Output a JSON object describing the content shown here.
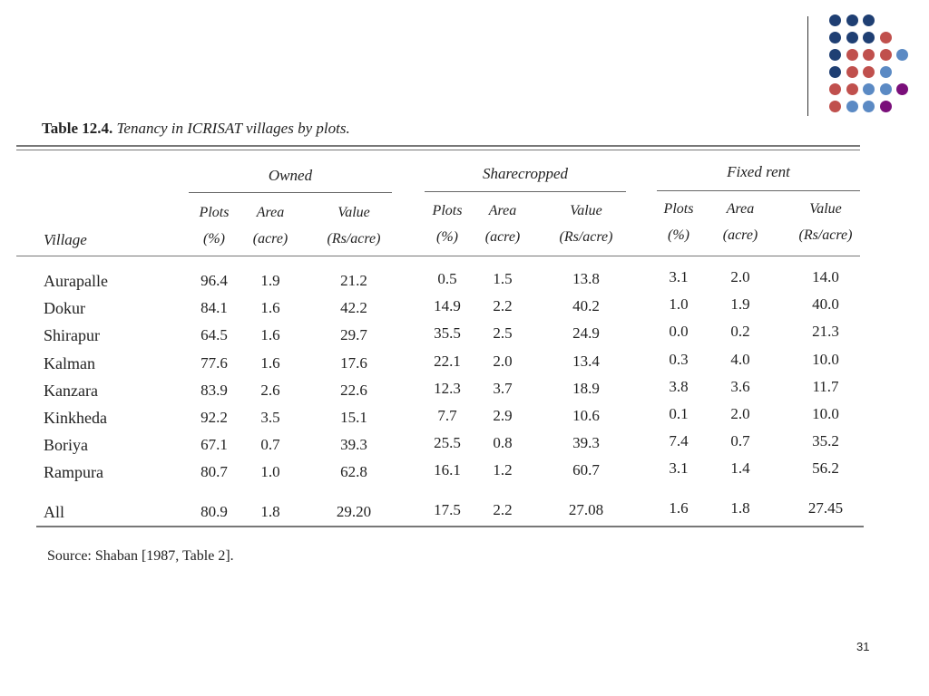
{
  "table": {
    "title_label": "Table 12.4.",
    "title_text": "Tenancy in ICRISAT villages by plots.",
    "groups": [
      "Owned",
      "Sharecropped",
      "Fixed rent"
    ],
    "col_header_village": "Village",
    "sub_headers": [
      {
        "line1": "Plots",
        "line2": "(%)"
      },
      {
        "line1": "Area",
        "line2": "(acre)"
      },
      {
        "line1": "Value",
        "line2": "(Rs/acre)"
      }
    ],
    "rows": [
      {
        "village": "Aurapalle",
        "values": [
          "96.4",
          "1.9",
          "21.2",
          "0.5",
          "1.5",
          "13.8",
          "3.1",
          "2.0",
          "14.0"
        ]
      },
      {
        "village": "Dokur",
        "values": [
          "84.1",
          "1.6",
          "42.2",
          "14.9",
          "2.2",
          "40.2",
          "1.0",
          "1.9",
          "40.0"
        ]
      },
      {
        "village": "Shirapur",
        "values": [
          "64.5",
          "1.6",
          "29.7",
          "35.5",
          "2.5",
          "24.9",
          "0.0",
          "0.2",
          "21.3"
        ]
      },
      {
        "village": "Kalman",
        "values": [
          "77.6",
          "1.6",
          "17.6",
          "22.1",
          "2.0",
          "13.4",
          "0.3",
          "4.0",
          "10.0"
        ]
      },
      {
        "village": "Kanzara",
        "values": [
          "83.9",
          "2.6",
          "22.6",
          "12.3",
          "3.7",
          "18.9",
          "3.8",
          "3.6",
          "11.7"
        ]
      },
      {
        "village": "Kinkheda",
        "values": [
          "92.2",
          "3.5",
          "15.1",
          "7.7",
          "2.9",
          "10.6",
          "0.1",
          "2.0",
          "10.0"
        ]
      },
      {
        "village": "Boriya",
        "values": [
          "67.1",
          "0.7",
          "39.3",
          "25.5",
          "0.8",
          "39.3",
          "7.4",
          "0.7",
          "35.2"
        ]
      },
      {
        "village": "Rampura",
        "values": [
          "80.7",
          "1.0",
          "62.8",
          "16.1",
          "1.2",
          "60.7",
          "3.1",
          "1.4",
          "56.2"
        ]
      },
      {
        "village": "All",
        "values": [
          "80.9",
          "1.8",
          "29.20",
          "17.5",
          "2.2",
          "27.08",
          "1.6",
          "1.8",
          "27.45"
        ]
      }
    ],
    "source": "Source: Shaban [1987, Table 2]."
  },
  "slide": {
    "page_number": "31"
  },
  "decoration": {
    "colors": {
      "dark_blue": "#1f3f73",
      "red": "#c0504d",
      "light_blue": "#5b8ac4",
      "purple": "#7a0f7a"
    },
    "dot_rows": [
      [
        "dark_blue",
        "dark_blue",
        "dark_blue"
      ],
      [
        "dark_blue",
        "dark_blue",
        "dark_blue",
        "red"
      ],
      [
        "dark_blue",
        "red",
        "red",
        "red",
        "light_blue"
      ],
      [
        "dark_blue",
        "red",
        "red",
        "light_blue"
      ],
      [
        "red",
        "red",
        "light_blue",
        "light_blue",
        "purple"
      ],
      [
        "red",
        "light_blue",
        "light_blue",
        "purple"
      ]
    ]
  }
}
